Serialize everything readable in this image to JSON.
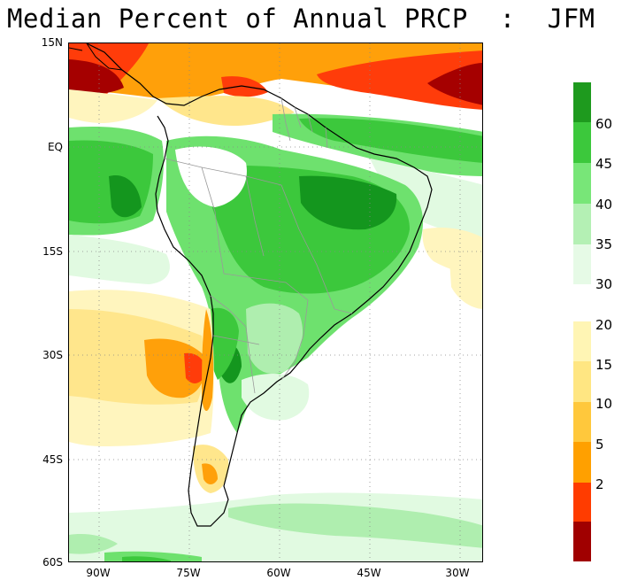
{
  "title": "Median Percent of Annual PRCP  :  JFM",
  "axes": {
    "lat_labels": [
      {
        "text": "15N",
        "lat": 15
      },
      {
        "text": "EQ",
        "lat": 0
      },
      {
        "text": "15S",
        "lat": -15
      },
      {
        "text": "30S",
        "lat": -30
      },
      {
        "text": "45S",
        "lat": -45
      },
      {
        "text": "60S",
        "lat": -60
      }
    ],
    "lon_labels": [
      {
        "text": "90W",
        "lon": -90
      },
      {
        "text": "75W",
        "lon": -75
      },
      {
        "text": "60W",
        "lon": -60
      },
      {
        "text": "45W",
        "lon": -45
      },
      {
        "text": "30W",
        "lon": -30
      }
    ],
    "lon_range": [
      -95,
      -26
    ],
    "lat_range": [
      -60,
      15
    ],
    "grid": "dotted"
  },
  "legend": {
    "bins": [
      {
        "label": "60",
        "color": "#1e9a1e"
      },
      {
        "label": "45",
        "color": "#3cc83c"
      },
      {
        "label": "40",
        "color": "#78e678"
      },
      {
        "label": "35",
        "color": "#b4f0b4"
      },
      {
        "label": "30",
        "color": "#e6fae6"
      },
      {
        "label": "20",
        "color": "#fff5b4"
      },
      {
        "label": "15",
        "color": "#ffe682"
      },
      {
        "label": "10",
        "color": "#ffc83c"
      },
      {
        "label": "5",
        "color": "#ffa000"
      },
      {
        "label": "2",
        "color": "#ff3c00"
      },
      {
        "label": "",
        "color": "#a00000"
      }
    ]
  },
  "colors": {
    "darkred": "#a50000",
    "red": "#ff3c0a",
    "orange": "#ffa00a",
    "lightorange": "#ffc850",
    "yellow": "#ffe68c",
    "paleyellow": "#fff5be",
    "palegreen": "#e1fae1",
    "lightgreen": "#afeeaf",
    "green": "#6ee16e",
    "midgreen": "#3cc83c",
    "darkgreen": "#14961e",
    "border": "#000000",
    "internal_border": "#999999"
  }
}
